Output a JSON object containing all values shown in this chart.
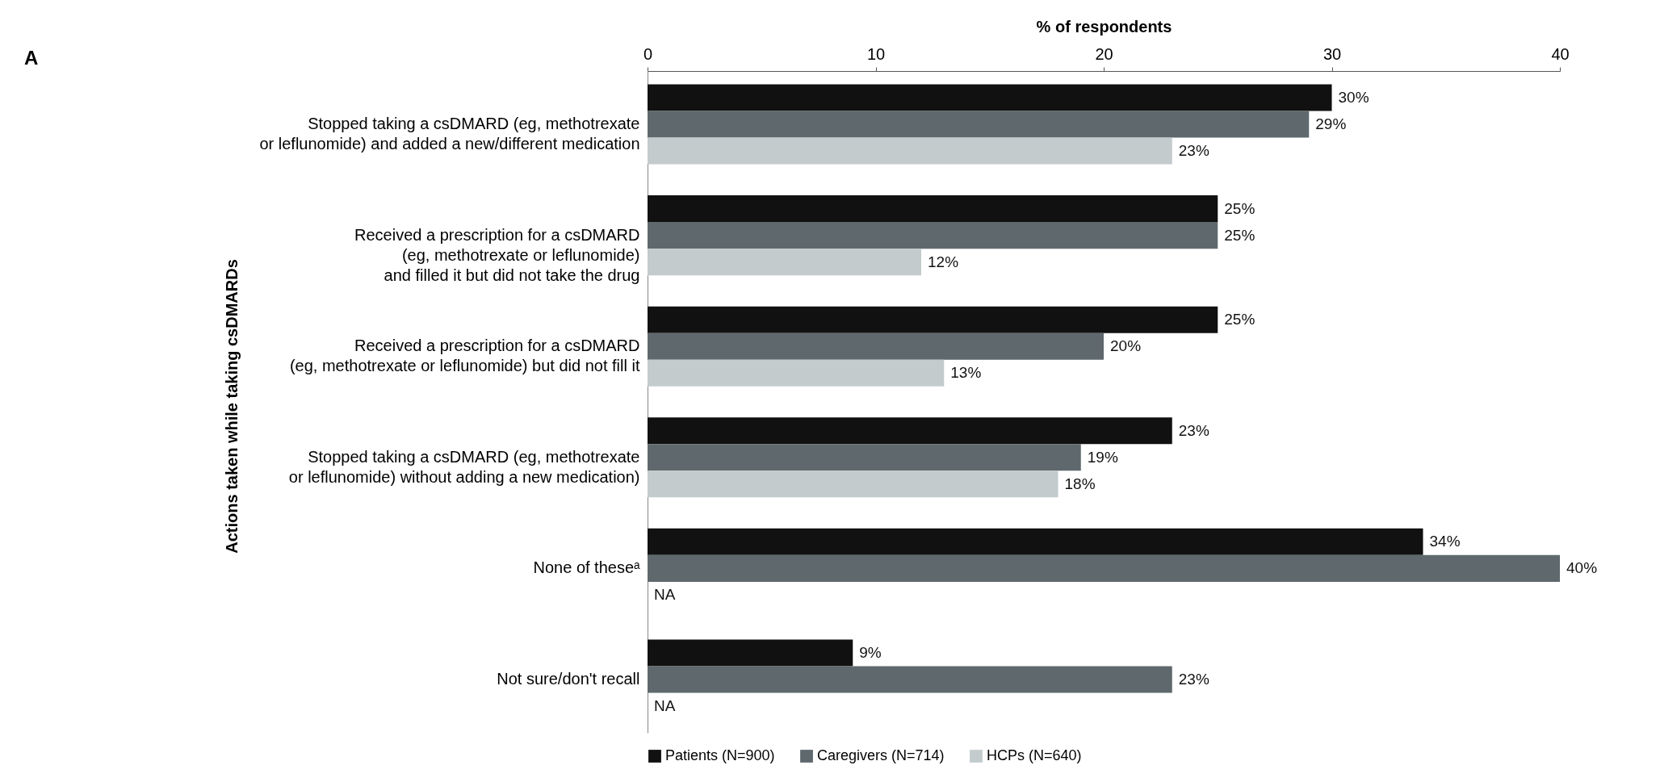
{
  "chart_data": {
    "type": "bar",
    "orientation": "horizontal",
    "xlabel": "% of respondents",
    "ylabel": "Actions taken while taking csDMARDs",
    "annotations": [
      "A"
    ],
    "categories": [
      "Stopped taking a csDMARD (eg, methotrexate\nor leflunomide) and added a new/different medication",
      "Received a prescription for a csDMARD\n(eg, methotrexate or leflunomide)\nand filled it but did not take the drug",
      "Received a prescription for a csDMARD\n(eg, methotrexate or leflunomide) but did not fill it",
      "Stopped taking a csDMARD (eg, methotrexate\nor leflunomide) without adding a new medication)",
      "None of theseᵃ",
      "Not sure/don't recall"
    ],
    "series": [
      {
        "name": "Patients (N=900)",
        "color": "#111111",
        "values": [
          30,
          25,
          25,
          23,
          34,
          9
        ],
        "value_labels": [
          "30%",
          "25%",
          "25%",
          "23%",
          "34%",
          "9%"
        ]
      },
      {
        "name": "Caregivers (N=714)",
        "color": "#5f686d",
        "values": [
          29,
          25,
          20,
          19,
          40,
          23
        ],
        "value_labels": [
          "29%",
          "25%",
          "20%",
          "19%",
          "40%",
          "23%"
        ]
      },
      {
        "name": "HCPs (N=640)",
        "color": "#c3cbcc",
        "values": [
          23,
          12,
          13,
          18,
          null,
          null
        ],
        "value_labels": [
          "23%",
          "12%",
          "13%",
          "18%",
          "NA",
          "NA"
        ]
      }
    ],
    "xlim": [
      0,
      40
    ],
    "xticks": [
      0,
      10,
      20,
      30,
      40
    ],
    "grid": false,
    "legend": "bottom"
  }
}
